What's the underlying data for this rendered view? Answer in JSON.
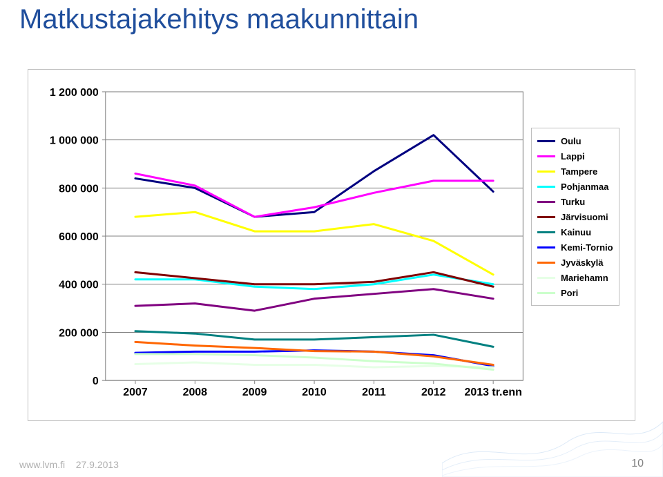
{
  "page": {
    "title": "Matkustajakehitys maakunnittain",
    "footer_site": "www.lvm.fi",
    "footer_date": "27.9.2013",
    "page_number": "10"
  },
  "chart": {
    "type": "line",
    "background_color": "#ffffff",
    "grid_color": "#808080",
    "grid_line_width": 1,
    "axis_color": "#808080",
    "x_labels": [
      "2007",
      "2008",
      "2009",
      "2010",
      "2011",
      "2012",
      "2013 tr.enn"
    ],
    "y_ticks": [
      0,
      200000,
      400000,
      600000,
      800000,
      1000000,
      1200000
    ],
    "y_tick_labels": [
      "0",
      "200 000",
      "400 000",
      "600 000",
      "800 000",
      "1 000 000",
      "1 200 000"
    ],
    "ylim": [
      0,
      1200000
    ],
    "tick_label_fontsize": 16,
    "tick_label_fontweight": "bold",
    "line_width": 3,
    "series": [
      {
        "name": "Oulu",
        "color": "#000080",
        "data": [
          840000,
          800000,
          680000,
          700000,
          870000,
          1020000,
          785000
        ]
      },
      {
        "name": "Lappi",
        "color": "#ff00ff",
        "data": [
          860000,
          810000,
          680000,
          720000,
          780000,
          830000,
          830000
        ]
      },
      {
        "name": "Tampere",
        "color": "#ffff00",
        "data": [
          680000,
          700000,
          620000,
          620000,
          650000,
          580000,
          440000
        ]
      },
      {
        "name": "Pohjanmaa",
        "color": "#00ffff",
        "data": [
          420000,
          420000,
          390000,
          380000,
          400000,
          440000,
          400000
        ]
      },
      {
        "name": "Turku",
        "color": "#800080",
        "data": [
          310000,
          320000,
          290000,
          340000,
          360000,
          380000,
          340000
        ]
      },
      {
        "name": "Järvisuomi",
        "color": "#800000",
        "data": [
          450000,
          425000,
          400000,
          400000,
          410000,
          450000,
          390000
        ]
      },
      {
        "name": "Kainuu",
        "color": "#008080",
        "data": [
          205000,
          195000,
          170000,
          170000,
          180000,
          190000,
          140000
        ]
      },
      {
        "name": "Kemi-Tornio",
        "color": "#0000ff",
        "data": [
          115000,
          120000,
          120000,
          125000,
          120000,
          105000,
          60000
        ]
      },
      {
        "name": "Jyväskylä",
        "color": "#ff6600",
        "data": [
          160000,
          145000,
          135000,
          122000,
          120000,
          100000,
          65000
        ]
      },
      {
        "name": "Mariehamn",
        "color": "#e6ffe6",
        "data": [
          68000,
          75000,
          65000,
          65000,
          55000,
          60000,
          55000
        ]
      },
      {
        "name": "Pori",
        "color": "#ccffcc",
        "data": [
          110000,
          110000,
          105000,
          95000,
          80000,
          70000,
          45000
        ]
      }
    ]
  }
}
